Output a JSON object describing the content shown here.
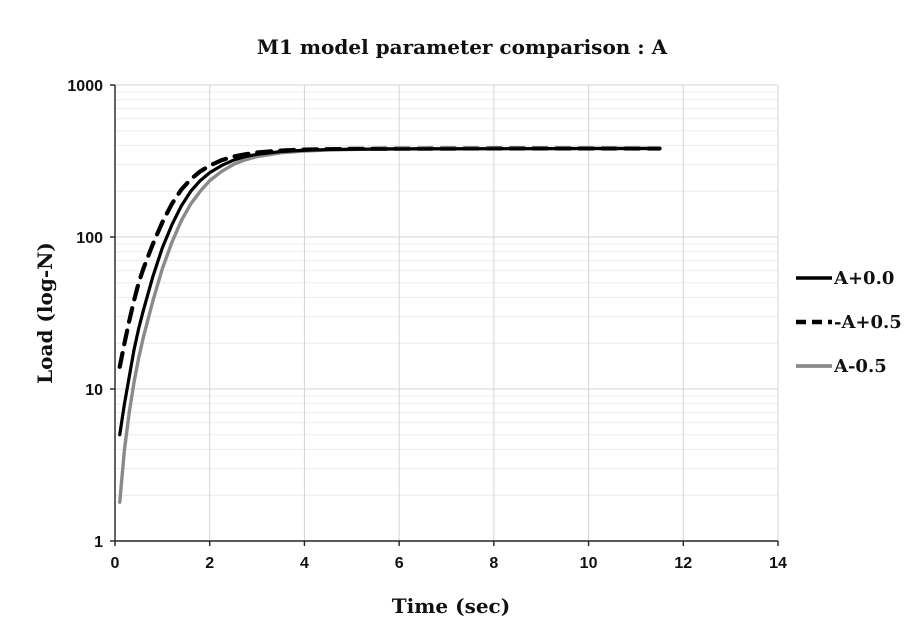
{
  "chart_data": {
    "type": "line",
    "title": "M1 model parameter  comparison : A",
    "xlabel": "Time (sec)",
    "ylabel": "Load (log-N)",
    "xlim": [
      0,
      14
    ],
    "ylim": [
      1,
      1000
    ],
    "y_scale": "log",
    "x_ticks": [
      "0",
      "2",
      "4",
      "6",
      "8",
      "10",
      "12",
      "14"
    ],
    "y_ticks": [
      "1",
      "10",
      "100",
      "1000"
    ],
    "grid": true,
    "legend_position": "right",
    "series": [
      {
        "name": "A+0.0",
        "style": "solid",
        "color": "#000000",
        "x": [
          0.1,
          0.2,
          0.3,
          0.4,
          0.5,
          0.6,
          0.8,
          1.0,
          1.2,
          1.4,
          1.6,
          1.8,
          2.0,
          2.25,
          2.5,
          2.75,
          3.0,
          3.5,
          4.0,
          4.5,
          5.0,
          6.0,
          8.0,
          10.0,
          11.5
        ],
        "y": [
          5,
          8,
          12,
          18,
          25,
          33,
          55,
          85,
          120,
          160,
          200,
          235,
          265,
          295,
          320,
          338,
          350,
          365,
          372,
          376,
          378,
          380,
          381,
          382,
          382
        ]
      },
      {
        "name": "-A+0.5",
        "style": "dashed",
        "color": "#000000",
        "x": [
          0.1,
          0.2,
          0.3,
          0.4,
          0.5,
          0.6,
          0.8,
          1.0,
          1.2,
          1.4,
          1.6,
          1.8,
          2.0,
          2.25,
          2.5,
          2.75,
          3.0,
          3.5,
          4.0,
          4.5,
          5.0,
          6.0,
          8.0,
          10.0,
          11.5
        ],
        "y": [
          14,
          20,
          28,
          38,
          50,
          62,
          90,
          125,
          165,
          205,
          240,
          270,
          295,
          320,
          338,
          350,
          360,
          370,
          376,
          378,
          380,
          381,
          382,
          382,
          382
        ]
      },
      {
        "name": "A-0.5",
        "style": "solid",
        "color": "#8a8a8a",
        "x": [
          0.1,
          0.2,
          0.3,
          0.4,
          0.5,
          0.6,
          0.8,
          1.0,
          1.2,
          1.4,
          1.6,
          1.8,
          2.0,
          2.25,
          2.5,
          2.75,
          3.0,
          3.5,
          4.0,
          4.5,
          5.0,
          6.0,
          8.0,
          10.0,
          11.5
        ],
        "y": [
          1.8,
          4,
          7,
          11,
          16,
          22,
          38,
          62,
          92,
          128,
          165,
          200,
          235,
          270,
          300,
          322,
          338,
          358,
          368,
          374,
          377,
          380,
          381,
          382,
          383
        ]
      }
    ]
  }
}
